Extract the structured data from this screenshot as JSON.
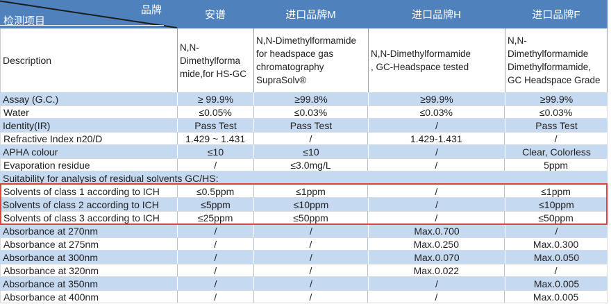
{
  "table": {
    "corner": {
      "top_right": "品牌",
      "bottom_left": "检测项目"
    },
    "columns": [
      "安谱",
      "进口品牌M",
      "进口品牌H",
      "进口品牌F"
    ],
    "description": {
      "label": "Description",
      "values": [
        "N,N-\nDimethylforma\nmide,for HS-GC",
        "N,N-Dimethylformamide\nfor headspace gas\nchromatography\nSupraSolv®",
        "N,N-Dimethylformamide\n, GC-Headspace tested",
        "N,N-\nDimethylformamide\nDimethylformamide,\nGC Headspace Grade"
      ]
    },
    "rows": [
      {
        "label": "Assay (G.C.)",
        "values": [
          "≥ 99.9%",
          "≥99.8%",
          "≥99.9%",
          "≥99.9%"
        ]
      },
      {
        "label": "Water",
        "values": [
          "≤0.05%",
          "≤0.03%",
          "≤0.03%",
          "≤0.03%"
        ]
      },
      {
        "label": "Identity(IR)",
        "values": [
          "Pass Test",
          "Pass Test",
          "/",
          "Pass Test"
        ]
      },
      {
        "label": "Refractive Index n20/D",
        "values": [
          "1.429 ~ 1.431",
          "/",
          "1.429-1.431",
          "/"
        ]
      },
      {
        "label": "APHA colour",
        "values": [
          "≤10",
          "≤10",
          "/",
          "Clear, Colorless"
        ]
      },
      {
        "label": "Evaporation residue",
        "values": [
          "/",
          "≤3.0mg/L",
          "/",
          "5ppm"
        ]
      },
      {
        "section": true,
        "label": "Suitability for analysis of residual solvents GC/HS:"
      },
      {
        "label": "Solvents of class 1 according to ICH",
        "values": [
          "≤0.5ppm",
          "≤1ppm",
          "/",
          "≤1ppm"
        ],
        "highlighted": true
      },
      {
        "label": "Solvents of class 2 according to ICH",
        "values": [
          "≤5ppm",
          "≤10ppm",
          "/",
          "≤10ppm"
        ],
        "highlighted": true
      },
      {
        "label": "Solvents of class 3 according to ICH",
        "values": [
          "≤25ppm",
          "≤50ppm",
          "/",
          "≤50ppm"
        ],
        "highlighted": true
      },
      {
        "label": "Absorbance at 270nm",
        "values": [
          "/",
          "/",
          "Max.0.700",
          "/"
        ]
      },
      {
        "label": "Absorbance at 275nm",
        "values": [
          "/",
          "/",
          "Max.0.250",
          "Max.0.300"
        ]
      },
      {
        "label": "Absorbance at 300nm",
        "values": [
          "/",
          "/",
          "Max.0.070",
          "Max.0.050"
        ]
      },
      {
        "label": "Absorbance at 320nm",
        "values": [
          "/",
          "/",
          "Max.0.022",
          "/"
        ]
      },
      {
        "label": "Absorbance at 350nm",
        "values": [
          "/",
          "/",
          "/",
          "Max.0.005"
        ]
      },
      {
        "label": "Absorbance at 400nm",
        "values": [
          "/",
          "/",
          "/",
          "Max.0.005"
        ]
      }
    ],
    "colors": {
      "header_bg": "#4f81bd",
      "alt_row_bg": "#c5d9f1",
      "highlight_border": "#e04343",
      "header_text": "#ffffff"
    }
  }
}
